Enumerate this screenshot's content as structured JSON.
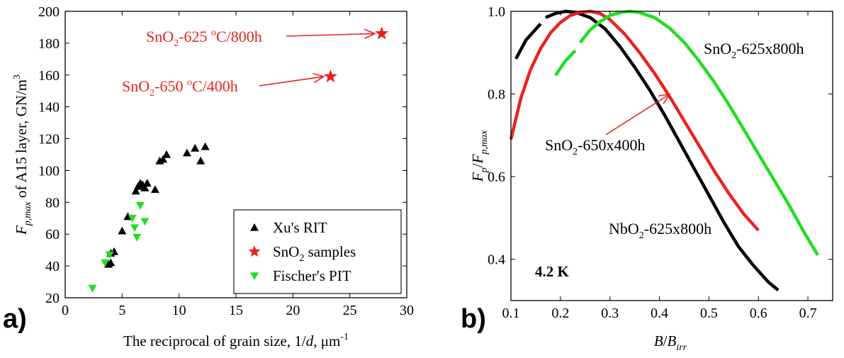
{
  "chart_data": [
    {
      "type": "scatter",
      "panel_label": "a)",
      "xlabel": {
        "pre": "The reciprocal of grain size, 1/",
        "var": "d",
        "post": ", μm",
        "sup": "-1"
      },
      "ylabel": {
        "var": "F",
        "sub": "p,max",
        "post": " of A15 layer, GN/m",
        "sup": "3"
      },
      "xlim": [
        0,
        30
      ],
      "ylim": [
        20,
        200
      ],
      "xticks": [
        0,
        5,
        10,
        15,
        20,
        25,
        30
      ],
      "yticks": [
        20,
        40,
        60,
        80,
        100,
        120,
        140,
        160,
        180,
        200
      ],
      "legend_position": "bottom-right",
      "series": [
        {
          "name": "Xu's RIT",
          "marker": "triangle-up",
          "color": "#000000",
          "points": [
            [
              3.8,
              41
            ],
            [
              4.0,
              42
            ],
            [
              4.0,
              48
            ],
            [
              4.3,
              49
            ],
            [
              5.0,
              62
            ],
            [
              5.5,
              71
            ],
            [
              6.2,
              87
            ],
            [
              6.4,
              90
            ],
            [
              6.6,
              92
            ],
            [
              6.8,
              91
            ],
            [
              7.0,
              89
            ],
            [
              7.2,
              92
            ],
            [
              7.9,
              88
            ],
            [
              8.3,
              106
            ],
            [
              8.6,
              107
            ],
            [
              8.9,
              110
            ],
            [
              10.7,
              111
            ],
            [
              11.4,
              114
            ],
            [
              11.9,
              106
            ],
            [
              12.3,
              115
            ]
          ]
        },
        {
          "name": "SnO",
          "name_sub": "2",
          "name_post": " samples",
          "marker": "star",
          "color": "#e8231f",
          "points": [
            [
              27.8,
              186
            ],
            [
              23.3,
              159
            ]
          ]
        },
        {
          "name": "Fischer's PIT",
          "marker": "triangle-down",
          "color": "#22dd22",
          "points": [
            [
              2.4,
              26
            ],
            [
              3.5,
              42
            ],
            [
              3.9,
              47
            ],
            [
              5.9,
              70
            ],
            [
              6.1,
              64
            ],
            [
              6.3,
              58
            ],
            [
              6.6,
              78
            ],
            [
              7.0,
              68
            ]
          ]
        }
      ],
      "annotations": [
        {
          "pre": "SnO",
          "sub": "2",
          "mid": "-625 ",
          "sup": "o",
          "post": "C/800h",
          "target": [
            27.2,
            186
          ]
        },
        {
          "pre": "SnO",
          "sub": "2",
          "mid": "-650 ",
          "sup": "o",
          "post": "C/400h",
          "target": [
            22.7,
            159
          ]
        }
      ]
    },
    {
      "type": "line",
      "panel_label": "b)",
      "xlabel": {
        "var": "B",
        "post": "/",
        "var2": "B",
        "sub": "irr"
      },
      "ylabel": {
        "var": "F",
        "sub": "p",
        "post": "/",
        "var2": "F",
        "sub2": "p,max"
      },
      "xlim": [
        0.1,
        0.75
      ],
      "ylim": [
        0.3,
        1.0
      ],
      "xticks": [
        0.1,
        0.2,
        0.3,
        0.4,
        0.5,
        0.6,
        0.7
      ],
      "yticks": [
        0.4,
        0.6,
        0.8,
        1.0
      ],
      "temperature_label": "4.2 K",
      "series": [
        {
          "name": "NbO2-625x800h",
          "color": "#000000",
          "segments": [
            [
              [
                0.11,
                0.885
              ],
              [
                0.13,
                0.93
              ],
              [
                0.16,
                0.97
              ]
            ],
            [
              [
                0.17,
                0.985
              ],
              [
                0.19,
                0.995
              ],
              [
                0.21,
                1.0
              ],
              [
                0.23,
                0.998
              ],
              [
                0.26,
                0.985
              ],
              [
                0.29,
                0.958
              ],
              [
                0.32,
                0.915
              ],
              [
                0.35,
                0.865
              ],
              [
                0.38,
                0.81
              ],
              [
                0.41,
                0.75
              ],
              [
                0.44,
                0.685
              ],
              [
                0.47,
                0.62
              ],
              [
                0.5,
                0.555
              ],
              [
                0.53,
                0.49
              ],
              [
                0.56,
                0.43
              ],
              [
                0.59,
                0.385
              ],
              [
                0.62,
                0.345
              ],
              [
                0.64,
                0.325
              ]
            ]
          ]
        },
        {
          "name": "SnO2-650x400h",
          "color": "#e8231f",
          "segments": [
            [
              [
                0.1,
                0.69
              ],
              [
                0.12,
                0.79
              ],
              [
                0.14,
                0.86
              ],
              [
                0.16,
                0.91
              ],
              [
                0.18,
                0.948
              ],
              [
                0.2,
                0.973
              ],
              [
                0.22,
                0.99
              ],
              [
                0.24,
                0.998
              ],
              [
                0.26,
                1.0
              ],
              [
                0.28,
                0.995
              ],
              [
                0.3,
                0.98
              ],
              [
                0.33,
                0.945
              ],
              [
                0.36,
                0.9
              ],
              [
                0.39,
                0.85
              ],
              [
                0.42,
                0.795
              ],
              [
                0.45,
                0.735
              ],
              [
                0.48,
                0.675
              ],
              [
                0.51,
                0.615
              ],
              [
                0.54,
                0.56
              ],
              [
                0.57,
                0.51
              ],
              [
                0.6,
                0.47
              ]
            ]
          ]
        },
        {
          "name": "SnO2-625x800h",
          "color": "#22dd22",
          "segments": [
            [
              [
                0.19,
                0.845
              ],
              [
                0.21,
                0.88
              ],
              [
                0.23,
                0.905
              ]
            ],
            [
              [
                0.24,
                0.925
              ],
              [
                0.26,
                0.955
              ],
              [
                0.28,
                0.975
              ],
              [
                0.3,
                0.99
              ],
              [
                0.32,
                0.997
              ],
              [
                0.34,
                1.0
              ],
              [
                0.36,
                0.997
              ],
              [
                0.39,
                0.985
              ],
              [
                0.42,
                0.96
              ],
              [
                0.45,
                0.925
              ],
              [
                0.48,
                0.88
              ],
              [
                0.51,
                0.83
              ],
              [
                0.54,
                0.775
              ],
              [
                0.57,
                0.715
              ],
              [
                0.6,
                0.655
              ],
              [
                0.63,
                0.595
              ],
              [
                0.66,
                0.535
              ],
              [
                0.69,
                0.47
              ],
              [
                0.72,
                0.41
              ]
            ]
          ]
        }
      ],
      "curve_labels": [
        {
          "pre": "SnO",
          "sub": "2",
          "post": "-625x800h",
          "color": "#22dd22"
        },
        {
          "pre": "SnO",
          "sub": "2",
          "post": "-650x400h",
          "color": "#e8231f",
          "arrow_target": [
            0.435,
            0.82
          ]
        },
        {
          "pre": "NbO",
          "sub": "2",
          "post": "-625x800h",
          "color": "#000000"
        }
      ]
    }
  ]
}
